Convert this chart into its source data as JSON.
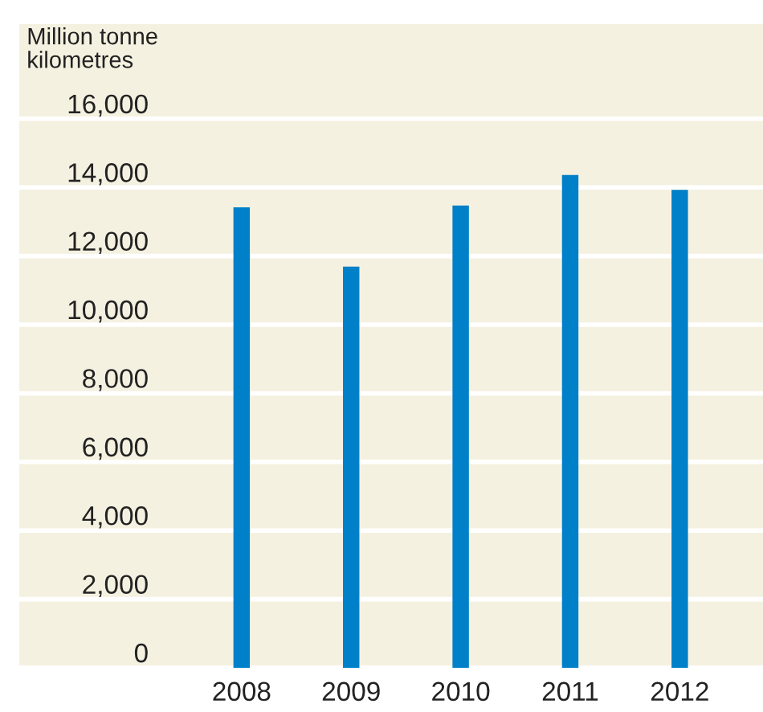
{
  "chart_data": {
    "type": "bar",
    "ylabel": "Million tonne\nkilometres",
    "categories": [
      "2008",
      "2009",
      "2010",
      "2011",
      "2012"
    ],
    "values": [
      13420,
      11690,
      13470,
      14360,
      13930
    ],
    "color": "#0080c8",
    "ylim": [
      0,
      18760
    ],
    "yticks": [
      {
        "value": 0,
        "label": "0"
      },
      {
        "value": 2000,
        "label": "2,000"
      },
      {
        "value": 4000,
        "label": "4,000"
      },
      {
        "value": 6000,
        "label": "6,000"
      },
      {
        "value": 8000,
        "label": "8,000"
      },
      {
        "value": 10000,
        "label": "10,000"
      },
      {
        "value": 12000,
        "label": "12,000"
      },
      {
        "value": 14000,
        "label": "14,000"
      },
      {
        "value": 16000,
        "label": "16,000"
      }
    ],
    "grid": "y"
  }
}
